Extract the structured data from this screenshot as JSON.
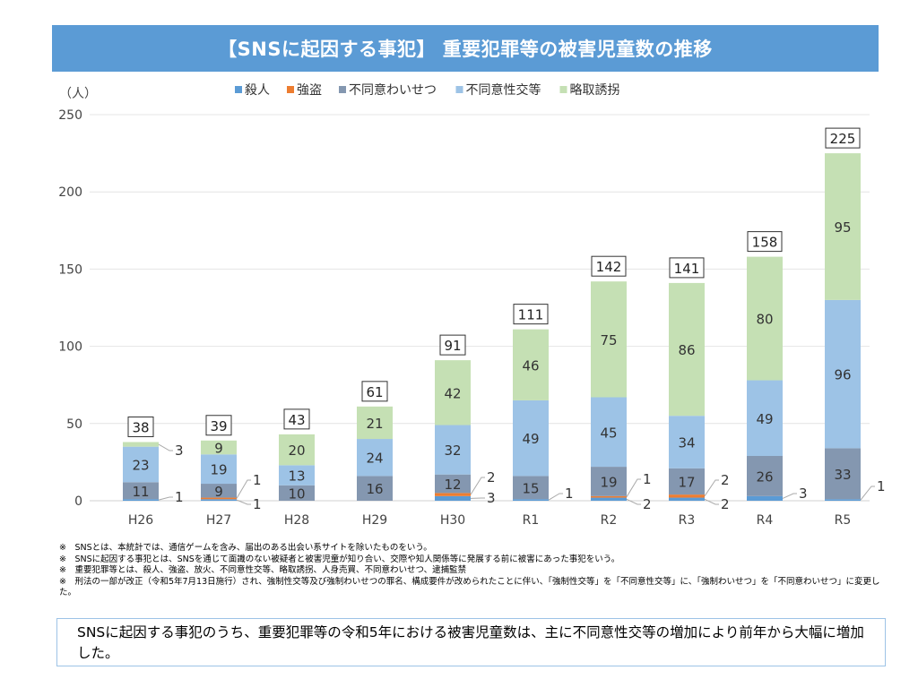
{
  "chart_data": {
    "type": "bar",
    "stacked": true,
    "title": "【SNSに起因する事犯】 重要犯罪等の被害児童数の推移",
    "ylabel": "（人）",
    "ylim": [
      0,
      250
    ],
    "yticks": [
      0,
      50,
      100,
      150,
      200,
      250
    ],
    "grid": true,
    "legend_position": "top",
    "categories": [
      "H26",
      "H27",
      "H28",
      "H29",
      "H30",
      "R1",
      "R2",
      "R3",
      "R4",
      "R5"
    ],
    "series": [
      {
        "name": "殺人",
        "color": "#5b9bd5",
        "values": [
          1,
          1,
          0,
          0,
          3,
          1,
          2,
          2,
          3,
          1
        ]
      },
      {
        "name": "強盗",
        "color": "#ed7d31",
        "values": [
          0,
          1,
          0,
          0,
          2,
          0,
          1,
          2,
          0,
          0
        ]
      },
      {
        "name": "不同意わいせつ",
        "color": "#8497b0",
        "values": [
          11,
          9,
          10,
          16,
          12,
          15,
          19,
          17,
          26,
          33
        ]
      },
      {
        "name": "不同意性交等",
        "color": "#9dc3e6",
        "values": [
          23,
          19,
          13,
          24,
          32,
          49,
          45,
          34,
          49,
          96
        ]
      },
      {
        "name": "略取誘拐",
        "color": "#c5e0b4",
        "values": [
          3,
          9,
          20,
          21,
          42,
          46,
          75,
          86,
          80,
          95
        ]
      }
    ],
    "totals": [
      38,
      39,
      43,
      61,
      91,
      111,
      142,
      141,
      158,
      225
    ]
  },
  "notes": [
    "※　SNSとは、本統計では、通信ゲームを含み、届出のある出会い系サイトを除いたものをいう。",
    "※　SNSに起因する事犯とは、SNSを通じて面識のない被疑者と被害児童が知り合い、交際や知人関係等に発展する前に被害にあった事犯をいう。",
    "※　重要犯罪等とは、殺人、強盗、放火、不同意性交等、略取誘拐、人身売買、不同意わいせつ、逮捕監禁",
    "※　刑法の一部が改正（令和5年7月13日施行）され、強制性交等及び強制わいせつの罪名、構成要件が改められたことに伴い、「強制性交等」を「不同意性交等」に、「強制わいせつ」を「不同意わいせつ」に変更した。"
  ],
  "summary": "SNSに起因する事犯のうち、重要犯罪等の令和5年における被害児童数は、主に不同意性交等の増加により前年から大幅に増加した。"
}
